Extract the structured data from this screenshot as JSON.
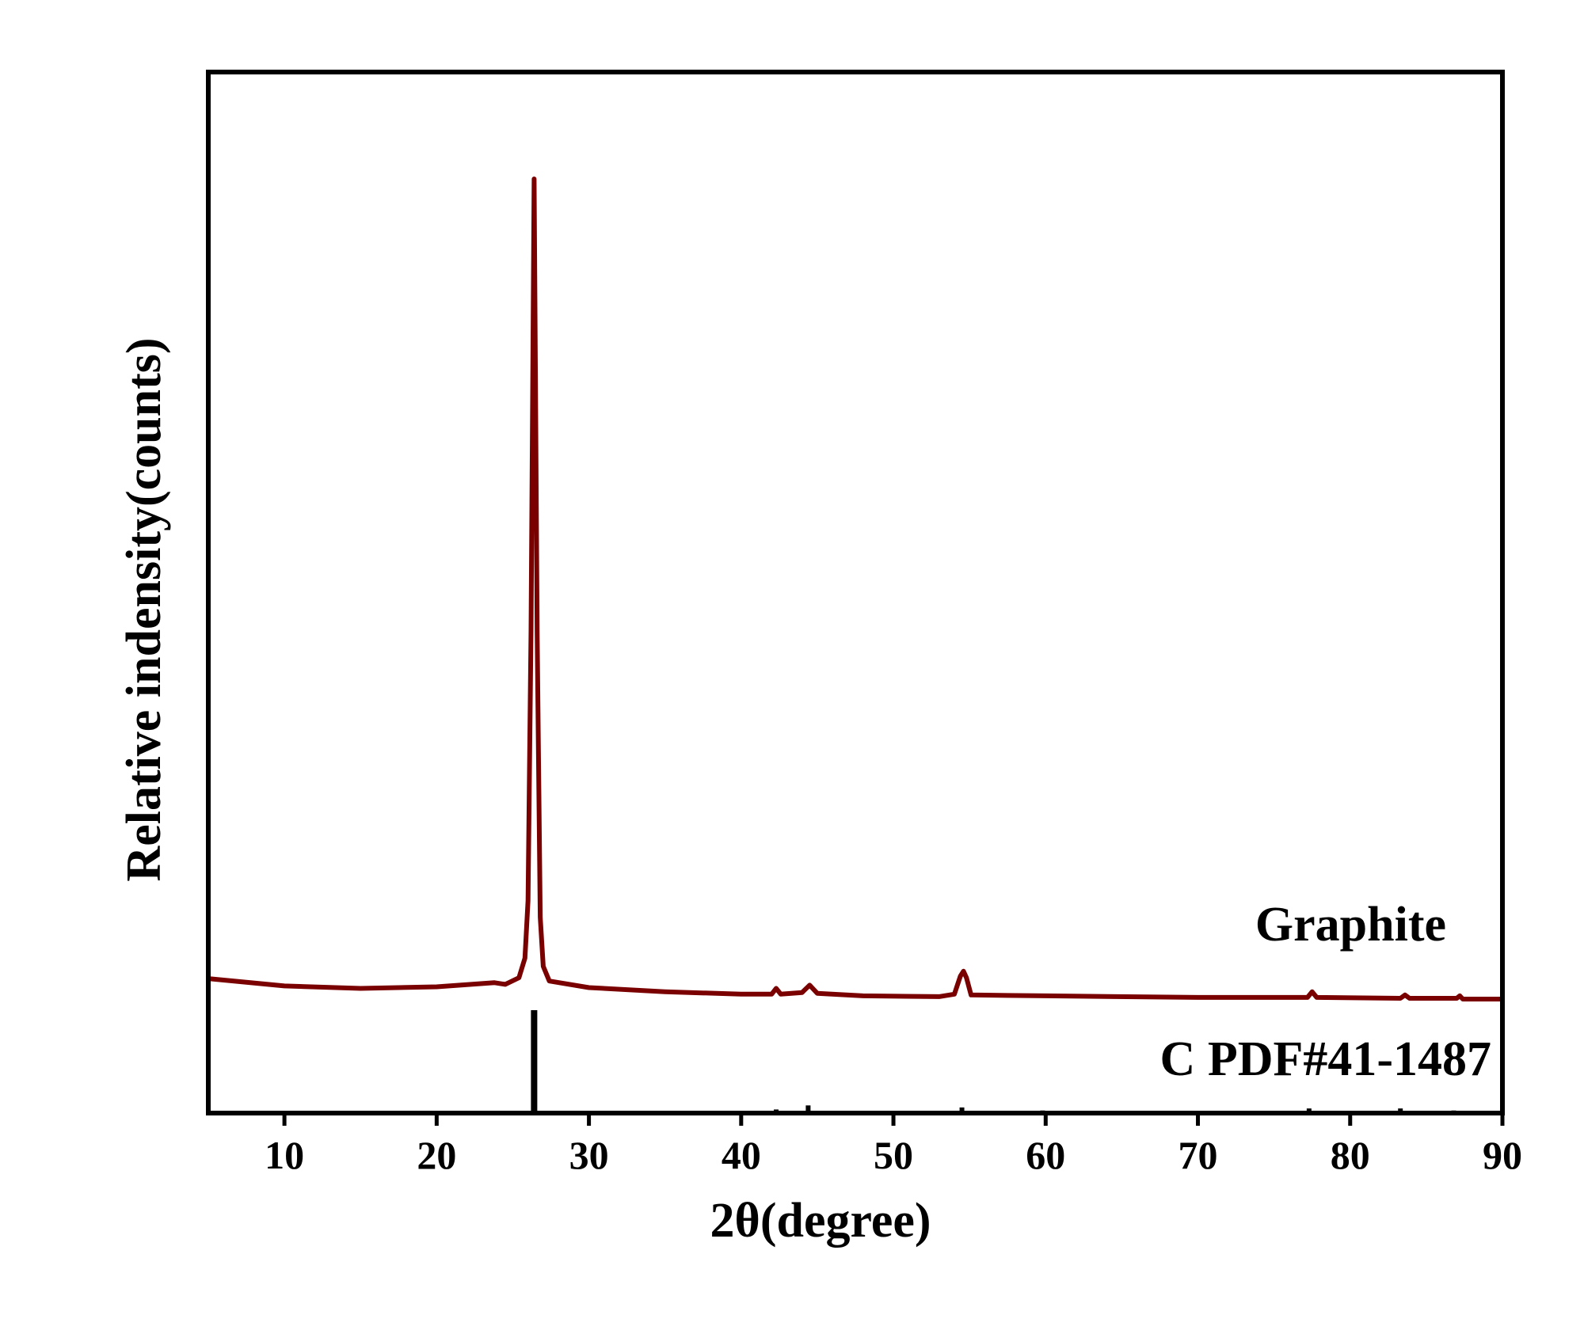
{
  "chart_data": {
    "type": "line",
    "xlabel": "2θ(degree)",
    "ylabel": "Relative indensity(counts)",
    "xlim": [
      5,
      90
    ],
    "x_ticks": [
      10,
      20,
      30,
      40,
      50,
      60,
      70,
      80,
      90
    ],
    "y_ticks_shown": false,
    "grid": false,
    "colors": {
      "pattern": "#7a0000",
      "reference": "#000000",
      "axes": "#000000"
    },
    "series": [
      {
        "name": "Graphite",
        "style": "line",
        "points": [
          [
            5,
            2.5
          ],
          [
            10,
            1.6
          ],
          [
            15,
            1.3
          ],
          [
            20,
            1.5
          ],
          [
            23.8,
            2.0
          ],
          [
            24.5,
            1.8
          ],
          [
            25.4,
            2.6
          ],
          [
            25.8,
            5.0
          ],
          [
            26.0,
            12.0
          ],
          [
            26.2,
            45.0
          ],
          [
            26.4,
            100.0
          ],
          [
            26.6,
            45.0
          ],
          [
            26.8,
            10.0
          ],
          [
            27.0,
            4.0
          ],
          [
            27.4,
            2.2
          ],
          [
            30,
            1.4
          ],
          [
            35,
            0.9
          ],
          [
            40,
            0.6
          ],
          [
            42.0,
            0.6
          ],
          [
            42.3,
            1.3
          ],
          [
            42.6,
            0.6
          ],
          [
            44.0,
            0.8
          ],
          [
            44.5,
            1.7
          ],
          [
            45.0,
            0.7
          ],
          [
            48,
            0.4
          ],
          [
            53,
            0.3
          ],
          [
            54.0,
            0.6
          ],
          [
            54.4,
            2.8
          ],
          [
            54.6,
            3.4
          ],
          [
            54.8,
            2.6
          ],
          [
            55.1,
            0.5
          ],
          [
            60,
            0.4
          ],
          [
            70,
            0.2
          ],
          [
            77.2,
            0.2
          ],
          [
            77.5,
            0.9
          ],
          [
            77.8,
            0.2
          ],
          [
            83.3,
            0.1
          ],
          [
            83.6,
            0.5
          ],
          [
            83.9,
            0.1
          ],
          [
            87,
            0.1
          ],
          [
            87.2,
            0.4
          ],
          [
            87.4,
            0.0
          ],
          [
            90,
            0.0
          ]
        ]
      },
      {
        "name": "C PDF#41-1487",
        "style": "sticks",
        "x": [
          26.4,
          42.3,
          44.4,
          54.5,
          59.8,
          77.3,
          83.3,
          86.8
        ],
        "y": [
          100,
          2,
          6,
          4,
          1,
          3,
          3,
          1
        ]
      }
    ]
  }
}
